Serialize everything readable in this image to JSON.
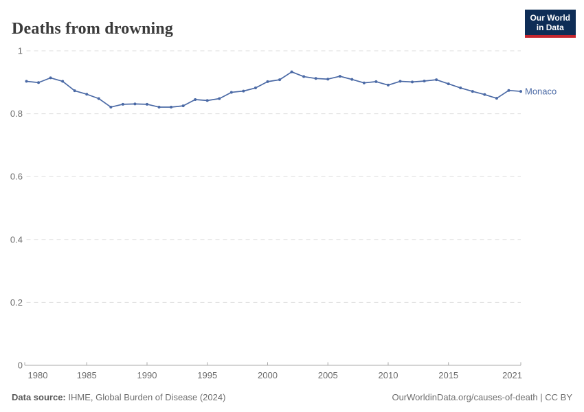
{
  "header": {
    "title": "Deaths from drowning"
  },
  "logo": {
    "line1": "Our World",
    "line2": "in Data",
    "bg": "#0e2d56",
    "accent": "#c5262e"
  },
  "colors": {
    "line": "#4a69a5",
    "grid": "#dedede",
    "axis": "#a8a8a8",
    "tick_label": "#6b6b6b",
    "title": "#3a3a3a",
    "footer": "#6e6e6e"
  },
  "chart_data": {
    "type": "line",
    "title": "Deaths from drowning",
    "xlabel": "",
    "ylabel": "",
    "xlim": [
      1980,
      2021
    ],
    "ylim": [
      0,
      1
    ],
    "grid": "horizontal-dashed",
    "legend": "end-of-line-label",
    "x_ticks": [
      1980,
      1985,
      1990,
      1995,
      2000,
      2005,
      2010,
      2015,
      2021
    ],
    "y_ticks": [
      0,
      0.2,
      0.4,
      0.6,
      0.8,
      1
    ],
    "series": [
      {
        "name": "Monaco",
        "color": "#4a69a5",
        "x": [
          1980,
          1981,
          1982,
          1983,
          1984,
          1985,
          1986,
          1987,
          1988,
          1989,
          1990,
          1991,
          1992,
          1993,
          1994,
          1995,
          1996,
          1997,
          1998,
          1999,
          2000,
          2001,
          2002,
          2003,
          2004,
          2005,
          2006,
          2007,
          2008,
          2009,
          2010,
          2011,
          2012,
          2013,
          2014,
          2015,
          2016,
          2017,
          2018,
          2019,
          2020,
          2021
        ],
        "values": [
          0.903,
          0.899,
          0.914,
          0.903,
          0.873,
          0.862,
          0.848,
          0.821,
          0.83,
          0.831,
          0.83,
          0.821,
          0.821,
          0.825,
          0.845,
          0.842,
          0.848,
          0.868,
          0.872,
          0.882,
          0.902,
          0.908,
          0.933,
          0.918,
          0.912,
          0.91,
          0.919,
          0.909,
          0.898,
          0.902,
          0.891,
          0.903,
          0.901,
          0.904,
          0.908,
          0.895,
          0.882,
          0.871,
          0.861,
          0.849,
          0.874,
          0.871
        ]
      }
    ]
  },
  "footer": {
    "source_label": "Data source:",
    "source_text": " IHME, Global Burden of Disease (2024)",
    "right_text": "OurWorldinData.org/causes-of-death | CC BY"
  }
}
